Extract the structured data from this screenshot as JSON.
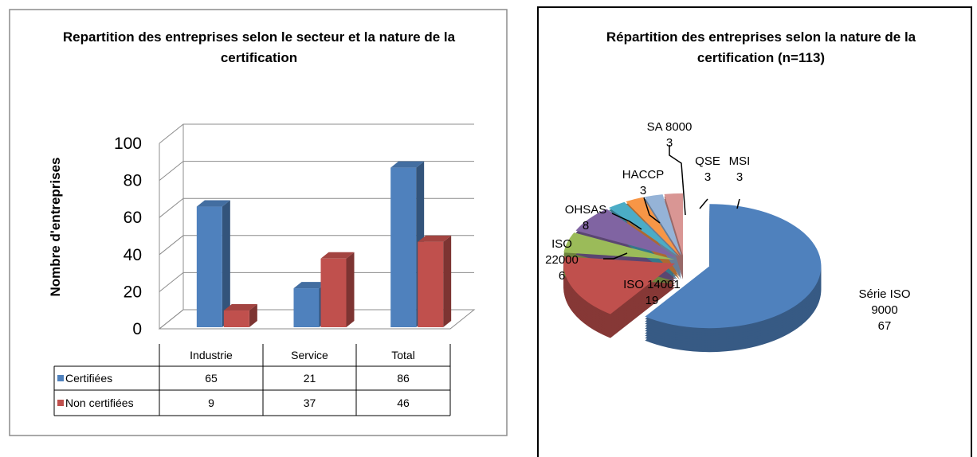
{
  "chart_data": [
    {
      "type": "bar3d",
      "title": "Repartition des entreprises selon le secteur et la nature de la certification",
      "y_label": "Nombre d'entreprises",
      "categories": [
        "Industrie",
        "Service",
        "Total"
      ],
      "series": [
        {
          "name": "Certifiées",
          "color": "#4f81bd",
          "values": [
            65,
            21,
            86
          ]
        },
        {
          "name": "Non certifiées",
          "color": "#c0504d",
          "values": [
            9,
            37,
            46
          ]
        }
      ],
      "ylim": [
        0,
        100
      ],
      "yticks": [
        0,
        20,
        40,
        60,
        80,
        100
      ],
      "grid": true,
      "data_table": true
    },
    {
      "type": "pie3d",
      "title": "Répartition des entreprises selon la nature de la certification (n=113)",
      "labels": [
        "Série ISO 9000",
        "ISO 14001",
        "ISO 22000",
        "OHSAS",
        "HACCP",
        "SA 8000",
        "QSE",
        "MSI"
      ],
      "values": [
        67,
        19,
        6,
        8,
        3,
        3,
        3,
        3
      ],
      "colors": [
        "#4f81bd",
        "#c0504d",
        "#9bbb59",
        "#8064a2",
        "#4bacc6",
        "#f79646",
        "#95b3d7",
        "#d99694"
      ]
    }
  ]
}
